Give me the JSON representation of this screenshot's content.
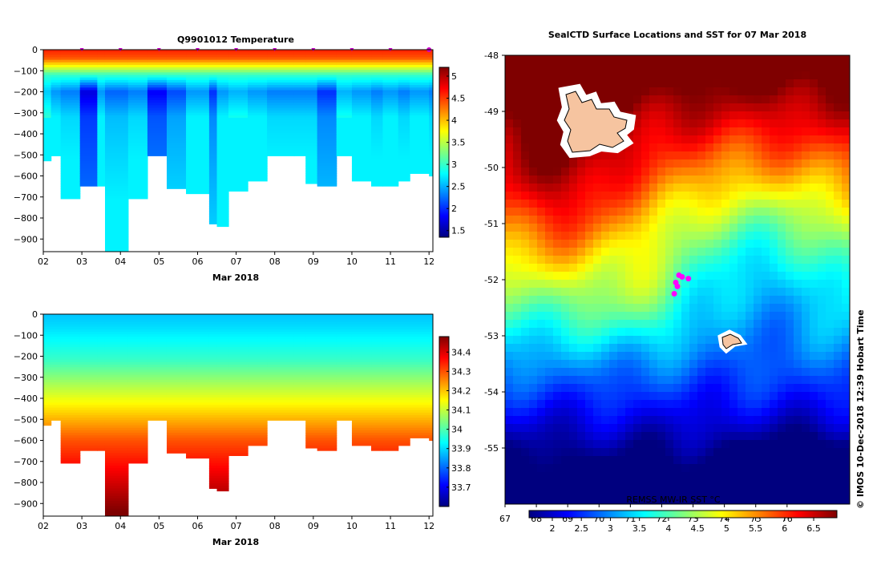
{
  "colors": {
    "jet": [
      "#00007f",
      "#0000ff",
      "#007fff",
      "#00ffff",
      "#7fff7f",
      "#ffff00",
      "#ff7f00",
      "#ff0000",
      "#7f0000"
    ]
  },
  "chart_data": [
    {
      "type": "heatmap",
      "title": "Q9901012  Temperature",
      "xlabel": "Mar 2018",
      "x_ticks": [
        "02",
        "03",
        "04",
        "05",
        "06",
        "07",
        "08",
        "09",
        "10",
        "11",
        "12"
      ],
      "xlim": [
        2,
        12.1
      ],
      "y_ticks": [
        "0",
        "−100",
        "−200",
        "−300",
        "−400",
        "−500",
        "−600",
        "−700",
        "−800",
        "−900"
      ],
      "ylim": [
        -960,
        0
      ],
      "colorbar": {
        "min": 1.35,
        "max": 5.2,
        "ticks": [
          "1.5",
          "2",
          "2.5",
          "3",
          "3.5",
          "4",
          "4.5",
          "5"
        ],
        "tick_values": [
          1.5,
          2,
          2.5,
          3,
          3.5,
          4,
          4.5,
          5
        ]
      },
      "profile_times": [
        2.0,
        2.2,
        2.45,
        2.95,
        3.4,
        3.6,
        4.2,
        4.7,
        5.2,
        5.7,
        6.3,
        6.5,
        6.8,
        7.3,
        7.8,
        8.5,
        8.8,
        9.1,
        9.6,
        10.0,
        10.5,
        10.8,
        11.2,
        11.5,
        12.0
      ],
      "profile_depths": [
        520,
        500,
        700,
        640,
        640,
        950,
        700,
        500,
        650,
        680,
        820,
        835,
        670,
        615,
        500,
        500,
        630,
        640,
        500,
        615,
        640,
        645,
        620,
        585,
        590
      ],
      "profile_min_temp": [
        2.6,
        2.4,
        2.3,
        1.7,
        2.4,
        2.2,
        2.3,
        1.8,
        2.1,
        2.4,
        2.0,
        2.4,
        2.5,
        2.4,
        2.3,
        2.3,
        2.3,
        2.0,
        2.5,
        2.4,
        2.3,
        2.4,
        2.3,
        2.4,
        2.3
      ],
      "surface_temp": 4.6,
      "markers_count": 10
    },
    {
      "type": "heatmap",
      "title": "",
      "xlabel": "Mar 2018",
      "x_ticks": [
        "02",
        "03",
        "04",
        "05",
        "06",
        "07",
        "08",
        "09",
        "10",
        "11",
        "12"
      ],
      "xlim": [
        2,
        12.1
      ],
      "y_ticks": [
        "0",
        "−100",
        "−200",
        "−300",
        "−400",
        "−500",
        "−600",
        "−700",
        "−800",
        "−900"
      ],
      "ylim": [
        -960,
        0
      ],
      "colorbar": {
        "min": 33.6,
        "max": 34.48,
        "ticks": [
          "33.7",
          "33.8",
          "33.9",
          "34",
          "34.1",
          "34.2",
          "34.3",
          "34.4"
        ],
        "tick_values": [
          33.7,
          33.8,
          33.9,
          34.0,
          34.1,
          34.2,
          34.3,
          34.4
        ]
      }
    },
    {
      "type": "heatmap",
      "title": "SealCTD Surface Locations and SST for 07 Mar 2018",
      "xlabel": "",
      "ylabel": "",
      "lon_range": [
        67,
        78
      ],
      "lat_range": [
        -56,
        -48
      ],
      "y_ticks": [
        "-48",
        "-49",
        "-50",
        "-51",
        "-52",
        "-53",
        "-54",
        "-55"
      ],
      "x_ticks_top": [
        "67",
        "68",
        "69",
        "70",
        "71",
        "72",
        "73",
        "74",
        "75",
        "76"
      ],
      "colorbar": {
        "min": 1.6,
        "max": 6.9,
        "ticks": [
          "2",
          "2.5",
          "3",
          "3.5",
          "4",
          "4.5",
          "5",
          "5.5",
          "6",
          "6.5"
        ],
        "tick_values": [
          2,
          2.5,
          3,
          3.5,
          4,
          4.5,
          5,
          5.5,
          6,
          6.5
        ]
      },
      "credit": "REMSS MW-IR SST °C",
      "seal_positions": [
        [
          72.55,
          -51.92
        ],
        [
          72.65,
          -51.95
        ],
        [
          72.45,
          -52.05
        ],
        [
          72.5,
          -52.12
        ],
        [
          72.4,
          -52.25
        ],
        [
          72.85,
          -51.98
        ]
      ]
    }
  ],
  "footer": "© IMOS 10-Dec-2018 12:39 Hobart Time"
}
